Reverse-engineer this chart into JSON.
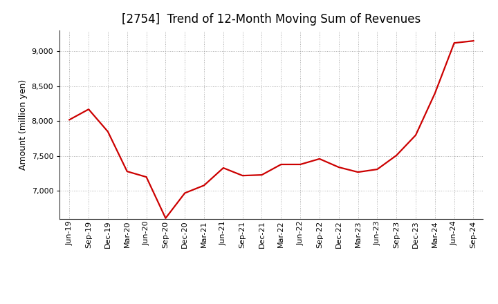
{
  "title": "[2754]  Trend of 12-Month Moving Sum of Revenues",
  "ylabel": "Amount (million yen)",
  "line_color": "#cc0000",
  "background_color": "#ffffff",
  "plot_background_color": "#ffffff",
  "grid_color": "#999999",
  "xlabels": [
    "Jun-19",
    "Sep-19",
    "Dec-19",
    "Mar-20",
    "Jun-20",
    "Sep-20",
    "Dec-20",
    "Mar-21",
    "Jun-21",
    "Sep-21",
    "Dec-21",
    "Mar-22",
    "Jun-22",
    "Sep-22",
    "Dec-22",
    "Mar-23",
    "Jun-23",
    "Sep-23",
    "Dec-23",
    "Mar-24",
    "Jun-24",
    "Sep-24"
  ],
  "values": [
    8020,
    8170,
    7850,
    7280,
    7200,
    6610,
    6970,
    7080,
    7330,
    7220,
    7230,
    7380,
    7380,
    7460,
    7340,
    7270,
    7310,
    7510,
    7800,
    8400,
    9120,
    9150
  ],
  "ylim_min": 6600,
  "ylim_max": 9300,
  "yticks": [
    7000,
    7500,
    8000,
    8500,
    9000
  ],
  "title_fontsize": 12,
  "axis_fontsize": 9,
  "tick_fontsize": 8,
  "line_width": 1.6
}
